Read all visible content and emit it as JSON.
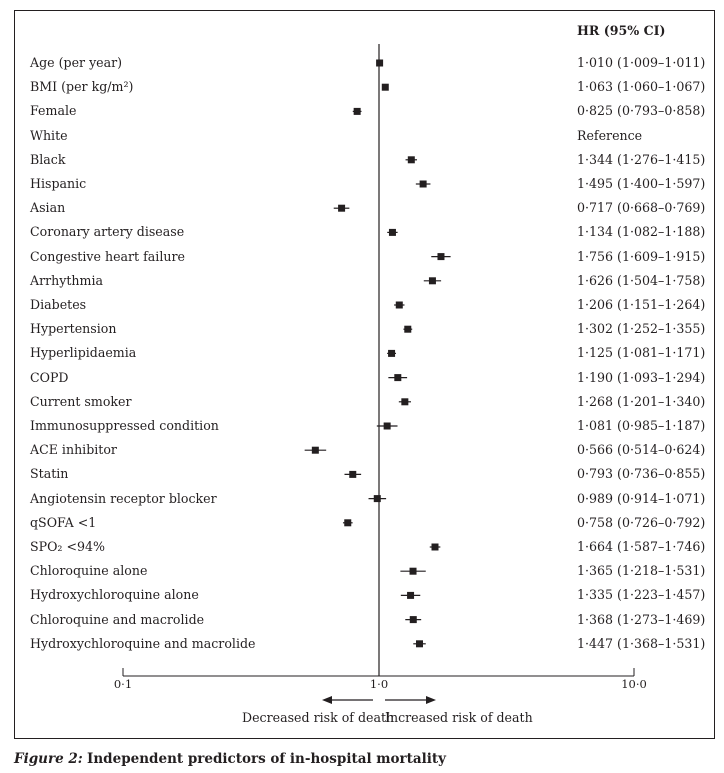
{
  "header": {
    "hr_label": "HR (95% CI)"
  },
  "chart_data": {
    "type": "forest",
    "x_scale": "log",
    "xlim": [
      0.1,
      10.0
    ],
    "xticks": [
      "0·1",
      "1·0",
      "10·0"
    ],
    "reference_line": 1.0,
    "direction_labels": {
      "left": "Decreased risk of death",
      "right": "Increased risk of death"
    },
    "rows": [
      {
        "label": "Age (per year)",
        "hr": 1.01,
        "lo": 1.009,
        "hi": 1.011,
        "text": "1·010 (1·009–1·011)"
      },
      {
        "label": "BMI (per kg/m²)",
        "hr": 1.063,
        "lo": 1.06,
        "hi": 1.067,
        "text": "1·063 (1·060–1·067)"
      },
      {
        "label": "Female",
        "hr": 0.825,
        "lo": 0.793,
        "hi": 0.858,
        "text": "0·825 (0·793–0·858)"
      },
      {
        "label": "White",
        "hr": null,
        "lo": null,
        "hi": null,
        "text": "Reference"
      },
      {
        "label": "Black",
        "hr": 1.344,
        "lo": 1.276,
        "hi": 1.415,
        "text": "1·344 (1·276–1·415)"
      },
      {
        "label": "Hispanic",
        "hr": 1.495,
        "lo": 1.4,
        "hi": 1.597,
        "text": "1·495 (1·400–1·597)"
      },
      {
        "label": "Asian",
        "hr": 0.717,
        "lo": 0.668,
        "hi": 0.769,
        "text": "0·717 (0·668–0·769)"
      },
      {
        "label": "Coronary artery disease",
        "hr": 1.134,
        "lo": 1.082,
        "hi": 1.188,
        "text": "1·134 (1·082–1·188)"
      },
      {
        "label": "Congestive heart failure",
        "hr": 1.756,
        "lo": 1.609,
        "hi": 1.915,
        "text": "1·756 (1·609–1·915)"
      },
      {
        "label": "Arrhythmia",
        "hr": 1.626,
        "lo": 1.504,
        "hi": 1.758,
        "text": "1·626 (1·504–1·758)"
      },
      {
        "label": "Diabetes",
        "hr": 1.206,
        "lo": 1.151,
        "hi": 1.264,
        "text": "1·206 (1·151–1·264)"
      },
      {
        "label": "Hypertension",
        "hr": 1.302,
        "lo": 1.252,
        "hi": 1.355,
        "text": "1·302 (1·252–1·355)"
      },
      {
        "label": "Hyperlipidaemia",
        "hr": 1.125,
        "lo": 1.081,
        "hi": 1.171,
        "text": "1·125 (1·081–1·171)"
      },
      {
        "label": "COPD",
        "hr": 1.19,
        "lo": 1.093,
        "hi": 1.294,
        "text": "1·190 (1·093–1·294)"
      },
      {
        "label": "Current smoker",
        "hr": 1.268,
        "lo": 1.201,
        "hi": 1.34,
        "text": "1·268 (1·201–1·340)"
      },
      {
        "label": "Immunosuppressed condition",
        "hr": 1.081,
        "lo": 0.985,
        "hi": 1.187,
        "text": "1·081 (0·985–1·187)"
      },
      {
        "label": "ACE inhibitor",
        "hr": 0.566,
        "lo": 0.514,
        "hi": 0.624,
        "text": "0·566 (0·514–0·624)"
      },
      {
        "label": "Statin",
        "hr": 0.793,
        "lo": 0.736,
        "hi": 0.855,
        "text": "0·793 (0·736–0·855)"
      },
      {
        "label": "Angiotensin receptor blocker",
        "hr": 0.989,
        "lo": 0.914,
        "hi": 1.071,
        "text": "0·989 (0·914–1·071)"
      },
      {
        "label": "qSOFA <1",
        "hr": 0.758,
        "lo": 0.726,
        "hi": 0.792,
        "text": "0·758 (0·726–0·792)"
      },
      {
        "label": "SPO₂ <94%",
        "hr": 1.664,
        "lo": 1.587,
        "hi": 1.746,
        "text": "1·664 (1·587–1·746)"
      },
      {
        "label": "Chloroquine alone",
        "hr": 1.365,
        "lo": 1.218,
        "hi": 1.531,
        "text": "1·365 (1·218–1·531)"
      },
      {
        "label": "Hydroxychloroquine alone",
        "hr": 1.335,
        "lo": 1.223,
        "hi": 1.457,
        "text": "1·335 (1·223–1·457)"
      },
      {
        "label": "Chloroquine and macrolide",
        "hr": 1.368,
        "lo": 1.273,
        "hi": 1.469,
        "text": "1·368 (1·273–1·469)"
      },
      {
        "label": "Hydroxychloroquine and macrolide",
        "hr": 1.447,
        "lo": 1.368,
        "hi": 1.531,
        "text": "1·447 (1·368–1·531)"
      }
    ]
  },
  "caption": {
    "figure_label": "Figure 2:",
    "title": "Independent predictors of in-hospital mortality"
  }
}
